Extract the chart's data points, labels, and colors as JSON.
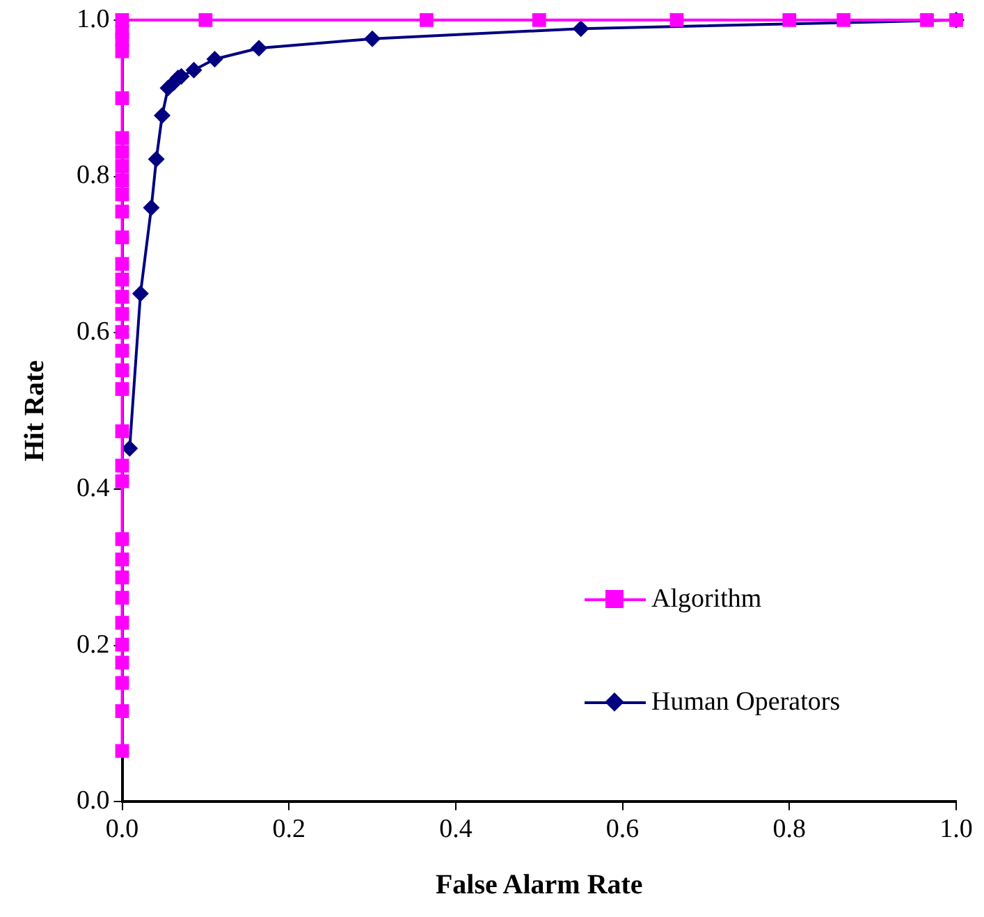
{
  "chart_data": {
    "type": "line",
    "xlabel": "False Alarm Rate",
    "ylabel": "Hit Rate",
    "xlim": [
      0,
      1
    ],
    "ylim": [
      0,
      1
    ],
    "xticks": [
      {
        "value": 0,
        "label": "0.0"
      },
      {
        "value": 0.2,
        "label": "0.2"
      },
      {
        "value": 0.4,
        "label": "0.4"
      },
      {
        "value": 0.6,
        "label": "0.6"
      },
      {
        "value": 0.8,
        "label": "0.8"
      },
      {
        "value": 1,
        "label": "1.0"
      }
    ],
    "yticks": [
      {
        "value": 0,
        "label": "0.0"
      },
      {
        "value": 0.2,
        "label": "0.2"
      },
      {
        "value": 0.4,
        "label": "0.4"
      },
      {
        "value": 0.6,
        "label": "0.6"
      },
      {
        "value": 0.8,
        "label": "0.8"
      },
      {
        "value": 1,
        "label": "1.0"
      }
    ],
    "grid": false,
    "legend": "right",
    "line_style": "solid",
    "series": [
      {
        "name": "Algorithm",
        "color": "#ff00ff",
        "marker": "square",
        "x": [
          0,
          0,
          0,
          0,
          0,
          0,
          0,
          0,
          0,
          0,
          0,
          0,
          0,
          0,
          0,
          0,
          0,
          0,
          0,
          0,
          0,
          0,
          0,
          0,
          0,
          0,
          0,
          0,
          0,
          0,
          0,
          0,
          0,
          0.1,
          0.365,
          0.5,
          0.665,
          0.8,
          0.865,
          0.965,
          1
        ],
        "values": [
          0.065,
          0.116,
          0.152,
          0.178,
          0.201,
          0.229,
          0.261,
          0.287,
          0.31,
          0.336,
          0.41,
          0.43,
          0.474,
          0.528,
          0.552,
          0.577,
          0.601,
          0.624,
          0.646,
          0.668,
          0.688,
          0.722,
          0.755,
          0.777,
          0.795,
          0.813,
          0.831,
          0.849,
          0.9,
          0.96,
          0.975,
          0.985,
          1,
          1,
          1,
          1,
          1,
          1,
          1,
          1,
          1
        ]
      },
      {
        "name": "Human Operators",
        "color": "#000080",
        "marker": "diamond",
        "x": [
          0.009,
          0.022,
          0.035,
          0.041,
          0.048,
          0.055,
          0.062,
          0.067,
          0.071,
          0.086,
          0.111,
          0.164,
          0.3,
          0.55,
          1
        ],
        "values": [
          0.452,
          0.65,
          0.76,
          0.822,
          0.878,
          0.913,
          0.92,
          0.926,
          0.928,
          0.936,
          0.95,
          0.964,
          0.976,
          0.989,
          1
        ]
      }
    ]
  }
}
